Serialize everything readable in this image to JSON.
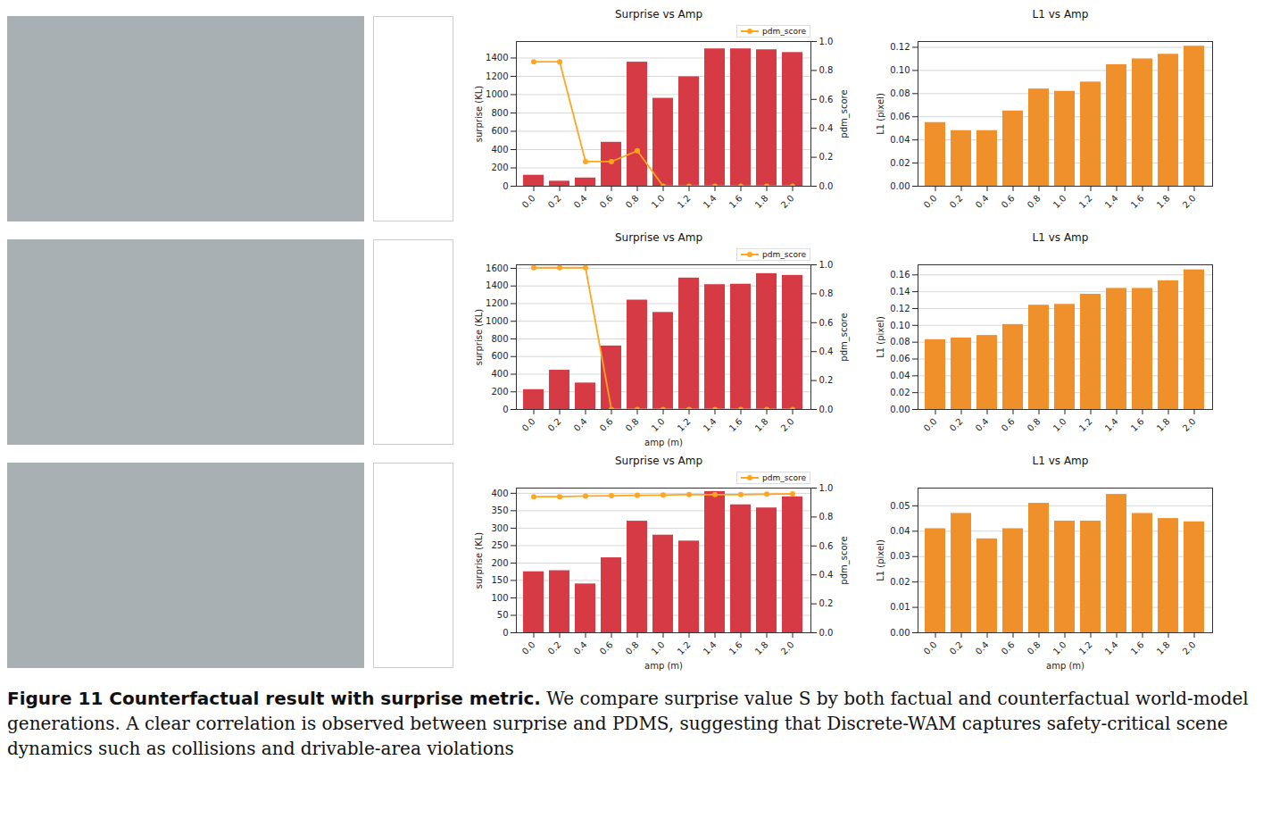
{
  "chart_data": [
    {
      "type": "bar",
      "title": "Surprise vs Amp",
      "y_label": "surprise (KL)",
      "y2_label": "pdm_score",
      "categories": [
        "0.0",
        "0.2",
        "0.4",
        "0.6",
        "0.8",
        "1.0",
        "1.2",
        "1.4",
        "1.6",
        "1.8",
        "2.0"
      ],
      "series": [
        {
          "color": "#d63a45",
          "values": [
            120,
            55,
            90,
            480,
            1355,
            960,
            1195,
            1500,
            1500,
            1490,
            1460
          ]
        },
        {
          "name": "pdm_score",
          "type": "line",
          "axis": "y2",
          "marker": "circle",
          "color": "#ffa51f",
          "values": [
            0.86,
            0.86,
            0.17,
            0.17,
            0.245,
            0,
            0,
            0,
            0,
            0,
            0
          ]
        }
      ],
      "ylim": [
        0,
        1580
      ],
      "yticks": [
        0,
        200,
        400,
        600,
        800,
        1000,
        1200,
        1400
      ],
      "y2lim": [
        0,
        1
      ],
      "y2ticks": [
        {
          "value": 0,
          "label": "0.0"
        },
        {
          "value": 0.2,
          "label": "0.2"
        },
        {
          "value": 0.4,
          "label": "0.4"
        },
        {
          "value": 0.6,
          "label": "0.6"
        },
        {
          "value": 0.8,
          "label": "0.8"
        },
        {
          "value": 1,
          "label": "1.0"
        }
      ],
      "grid": true,
      "legend": "top"
    },
    {
      "type": "bar",
      "title": "L1 vs Amp",
      "y_label": "L1 (pixel)",
      "categories": [
        "0.0",
        "0.2",
        "0.4",
        "0.6",
        "0.8",
        "1.0",
        "1.2",
        "1.4",
        "1.6",
        "1.8",
        "2.0"
      ],
      "series": [
        {
          "color": "#f0902a",
          "values": [
            0.055,
            0.048,
            0.048,
            0.065,
            0.084,
            0.082,
            0.09,
            0.105,
            0.11,
            0.114,
            0.121
          ]
        }
      ],
      "ylim": [
        0,
        0.125
      ],
      "yticks": [
        {
          "value": 0,
          "label": "0.00"
        },
        {
          "value": 0.02,
          "label": "0.02"
        },
        {
          "value": 0.04,
          "label": "0.04"
        },
        {
          "value": 0.06,
          "label": "0.06"
        },
        {
          "value": 0.08,
          "label": "0.08"
        },
        {
          "value": 0.1,
          "label": "0.10"
        },
        {
          "value": 0.12,
          "label": "0.12"
        }
      ],
      "grid": true
    },
    {
      "type": "bar",
      "title": "Surprise vs Amp",
      "x_label": "amp (m)",
      "y_label": "surprise (KL)",
      "y2_label": "pdm_score",
      "categories": [
        "0.0",
        "0.2",
        "0.4",
        "0.6",
        "0.8",
        "1.0",
        "1.2",
        "1.4",
        "1.6",
        "1.8",
        "2.0"
      ],
      "series": [
        {
          "color": "#d63a45",
          "values": [
            225,
            445,
            300,
            720,
            1240,
            1100,
            1490,
            1415,
            1420,
            1540,
            1520
          ]
        },
        {
          "name": "pdm_score",
          "type": "line",
          "axis": "y2",
          "marker": "circle",
          "color": "#ffa51f",
          "values": [
            0.98,
            0.98,
            0.98,
            0,
            0,
            0,
            0,
            0,
            0,
            0,
            0
          ]
        }
      ],
      "ylim": [
        0,
        1640
      ],
      "yticks": [
        0,
        200,
        400,
        600,
        800,
        1000,
        1200,
        1400,
        1600
      ],
      "y2lim": [
        0,
        1
      ],
      "y2ticks": [
        {
          "value": 0,
          "label": "0.0"
        },
        {
          "value": 0.2,
          "label": "0.2"
        },
        {
          "value": 0.4,
          "label": "0.4"
        },
        {
          "value": 0.6,
          "label": "0.6"
        },
        {
          "value": 0.8,
          "label": "0.8"
        },
        {
          "value": 1,
          "label": "1.0"
        }
      ],
      "grid": true,
      "legend": "top"
    },
    {
      "type": "bar",
      "title": "L1 vs Amp",
      "y_label": "L1 (pixel)",
      "categories": [
        "0.0",
        "0.2",
        "0.4",
        "0.6",
        "0.8",
        "1.0",
        "1.2",
        "1.4",
        "1.6",
        "1.8",
        "2.0"
      ],
      "series": [
        {
          "color": "#f0902a",
          "values": [
            0.083,
            0.085,
            0.088,
            0.101,
            0.124,
            0.125,
            0.137,
            0.144,
            0.144,
            0.153,
            0.166
          ]
        }
      ],
      "ylim": [
        0,
        0.172
      ],
      "yticks": [
        {
          "value": 0,
          "label": "0.00"
        },
        {
          "value": 0.02,
          "label": "0.02"
        },
        {
          "value": 0.04,
          "label": "0.04"
        },
        {
          "value": 0.06,
          "label": "0.06"
        },
        {
          "value": 0.08,
          "label": "0.08"
        },
        {
          "value": 0.1,
          "label": "0.10"
        },
        {
          "value": 0.12,
          "label": "0.12"
        },
        {
          "value": 0.14,
          "label": "0.14"
        },
        {
          "value": 0.16,
          "label": "0.16"
        }
      ],
      "grid": true
    },
    {
      "type": "bar",
      "title": "Surprise vs Amp",
      "x_label": "amp (m)",
      "y_label": "surprise (KL)",
      "y2_label": "pdm_score",
      "categories": [
        "0.0",
        "0.2",
        "0.4",
        "0.6",
        "0.8",
        "1.0",
        "1.2",
        "1.4",
        "1.6",
        "1.8",
        "2.0"
      ],
      "series": [
        {
          "color": "#d63a45",
          "values": [
            175,
            178,
            140,
            215,
            320,
            280,
            263,
            405,
            367,
            358,
            390
          ]
        },
        {
          "name": "pdm_score",
          "type": "line",
          "axis": "y2",
          "marker": "circle",
          "color": "#ffa51f",
          "values": [
            0.94,
            0.94,
            0.945,
            0.947,
            0.95,
            0.952,
            0.955,
            0.955,
            0.955,
            0.958,
            0.96
          ]
        }
      ],
      "ylim": [
        0,
        415
      ],
      "yticks": [
        0,
        50,
        100,
        150,
        200,
        250,
        300,
        350,
        400
      ],
      "y2lim": [
        0,
        1
      ],
      "y2ticks": [
        {
          "value": 0,
          "label": "0.0"
        },
        {
          "value": 0.2,
          "label": "0.2"
        },
        {
          "value": 0.4,
          "label": "0.4"
        },
        {
          "value": 0.6,
          "label": "0.6"
        },
        {
          "value": 0.8,
          "label": "0.8"
        },
        {
          "value": 1,
          "label": "1.0"
        }
      ],
      "grid": true,
      "legend": "top"
    },
    {
      "type": "bar",
      "title": "L1 vs Amp",
      "x_label": "amp (m)",
      "y_label": "L1 (pixel)",
      "categories": [
        "0.0",
        "0.2",
        "0.4",
        "0.6",
        "0.8",
        "1.0",
        "1.2",
        "1.4",
        "1.6",
        "1.8",
        "2.0"
      ],
      "series": [
        {
          "color": "#f0902a",
          "values": [
            0.041,
            0.047,
            0.037,
            0.041,
            0.051,
            0.044,
            0.044,
            0.0545,
            0.047,
            0.045,
            0.0437
          ]
        }
      ],
      "ylim": [
        0,
        0.057
      ],
      "yticks": [
        {
          "value": 0,
          "label": "0.00"
        },
        {
          "value": 0.01,
          "label": "0.01"
        },
        {
          "value": 0.02,
          "label": "0.02"
        },
        {
          "value": 0.03,
          "label": "0.03"
        },
        {
          "value": 0.04,
          "label": "0.04"
        },
        {
          "value": 0.05,
          "label": "0.05"
        }
      ],
      "grid": true
    }
  ],
  "caption": {
    "label": "Figure 11 Counterfactual result with surprise metric.",
    "text": "We compare surprise value S by both factual and counterfactual world-model generations. A clear correlation is observed between surprise and PDMS, suggesting that Discrete-WAM captures safety-critical scene dynamics such as collisions and drivable-area violations"
  }
}
